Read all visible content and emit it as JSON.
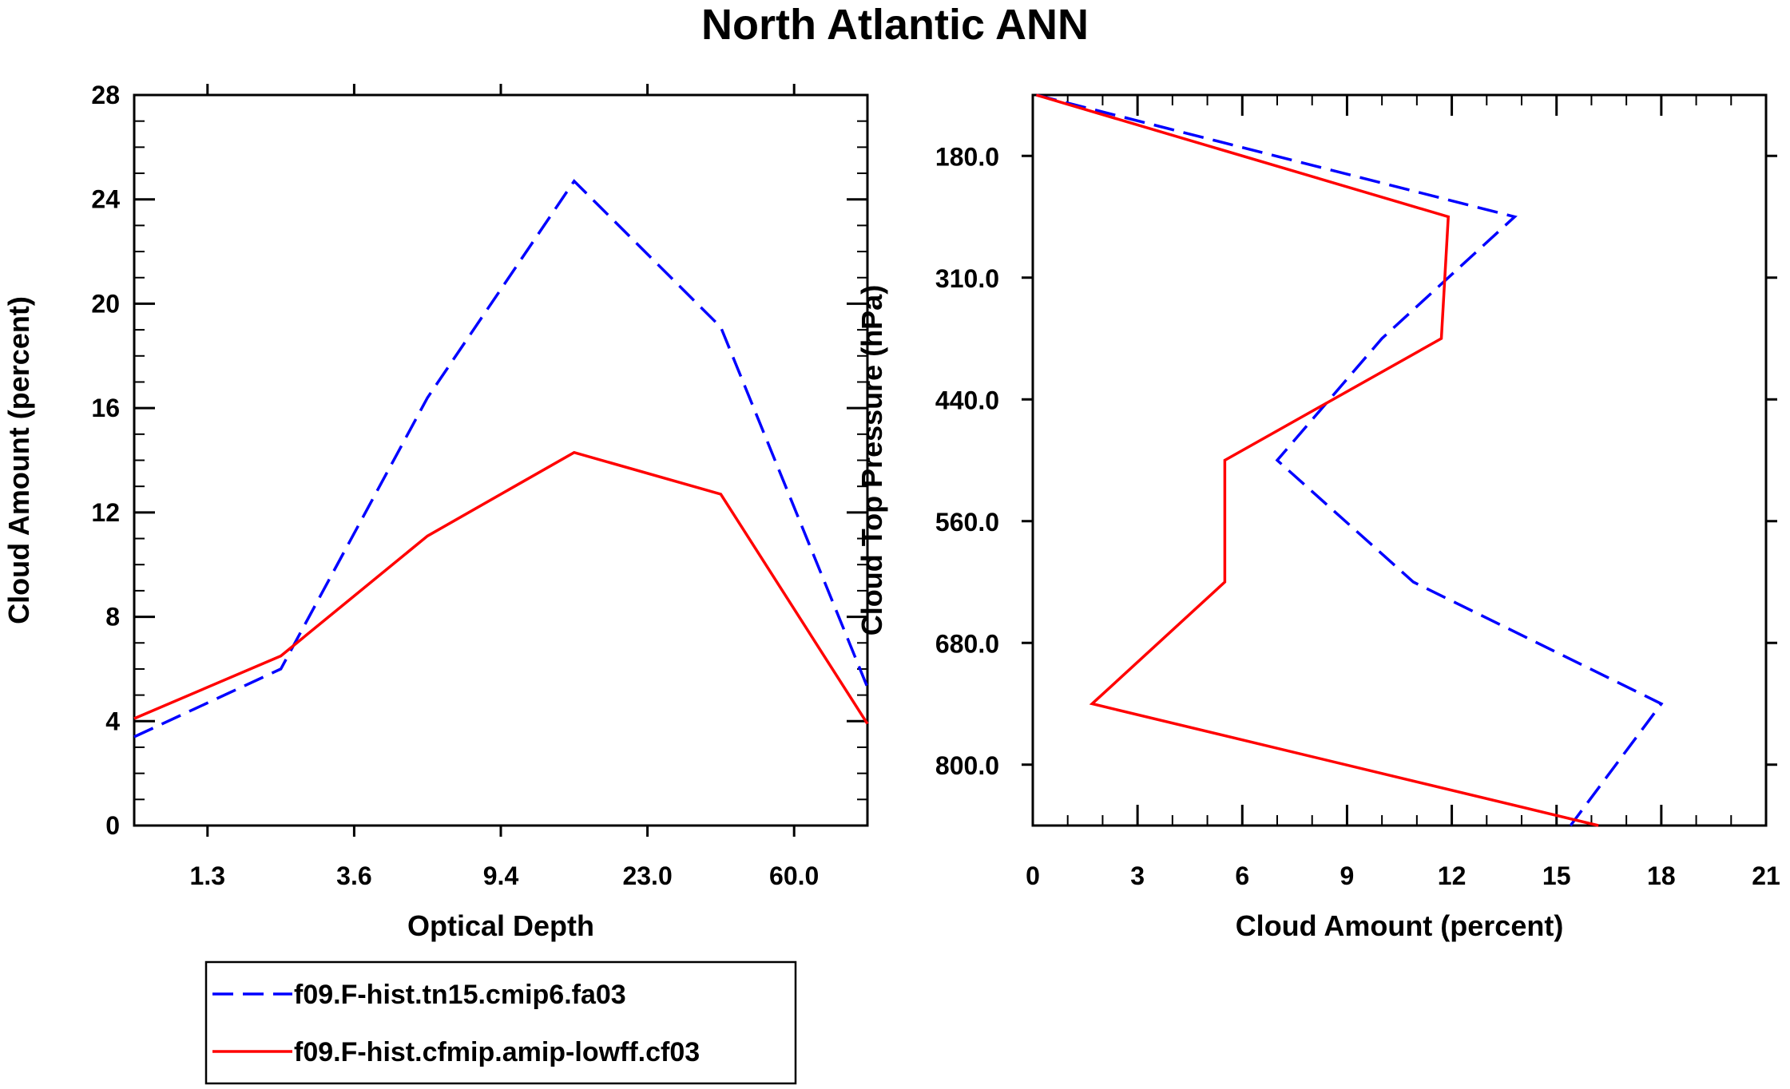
{
  "title": "North Atlantic ANN",
  "colors": {
    "series_1": "#0000ff",
    "series_2": "#ff0000",
    "axis": "#000000"
  },
  "chart_data": [
    {
      "type": "line",
      "title": "North Atlantic ANN",
      "xlabel": "Optical Depth",
      "ylabel": "Cloud Amount (percent)",
      "x_categories": [
        "1.3",
        "3.6",
        "9.4",
        "23.0",
        "60.0"
      ],
      "ylim": [
        0,
        28
      ],
      "yticks": [
        "0",
        "4",
        "8",
        "12",
        "16",
        "20",
        "24",
        "28"
      ],
      "series": [
        {
          "name": "f09.F-hist.tn15.cmip6.fa03",
          "style": "dashed",
          "x_index": [
            0,
            1,
            2,
            3,
            4,
            5
          ],
          "values": [
            3.4,
            6.0,
            16.4,
            24.7,
            19.1,
            5.3
          ]
        },
        {
          "name": "f09.F-hist.cfmip.amip-lowff.cf03",
          "style": "solid",
          "x_index": [
            0,
            1,
            2,
            3,
            4,
            5
          ],
          "values": [
            4.1,
            6.5,
            11.1,
            14.3,
            12.7,
            3.9
          ]
        }
      ]
    },
    {
      "type": "line",
      "xlabel": "Cloud Amount (percent)",
      "ylabel": "Cloud Top Pressure (hPa)",
      "xlim": [
        0,
        21
      ],
      "xticks": [
        "0",
        "3",
        "6",
        "9",
        "12",
        "15",
        "18",
        "21"
      ],
      "y_categories": [
        "180.0",
        "310.0",
        "440.0",
        "560.0",
        "680.0",
        "800.0"
      ],
      "series": [
        {
          "name": "f09.F-hist.tn15.cmip6.fa03",
          "style": "dashed",
          "y_index": [
            0,
            1,
            2,
            3,
            4,
            5,
            6
          ],
          "values": [
            0.1,
            13.8,
            10.0,
            7.0,
            10.9,
            18.0,
            15.4
          ]
        },
        {
          "name": "f09.F-hist.cfmip.amip-lowff.cf03",
          "style": "solid",
          "y_index": [
            0,
            1,
            2,
            3,
            4,
            5,
            6
          ],
          "values": [
            0.1,
            11.9,
            11.7,
            5.5,
            5.5,
            1.7,
            16.2
          ]
        }
      ]
    }
  ],
  "legend": {
    "entries": [
      "f09.F-hist.tn15.cmip6.fa03",
      "f09.F-hist.cfmip.amip-lowff.cf03"
    ],
    "placement": "below-left"
  }
}
